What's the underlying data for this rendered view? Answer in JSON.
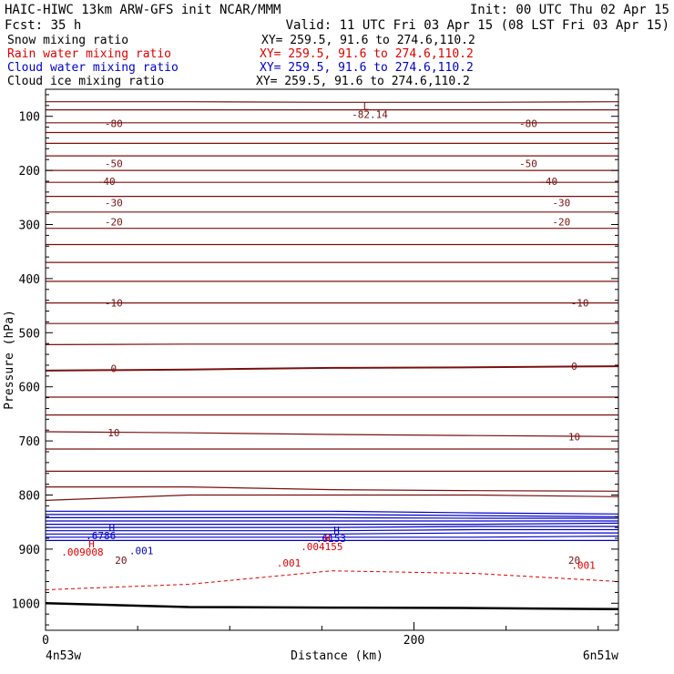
{
  "header": {
    "title": "HAIC-HIWC 13km ARW-GFS init   NCAR/MMM",
    "init": "Init: 00 UTC Thu 02 Apr 15",
    "fcst": "Fcst:   35 h",
    "valid": "Valid: 11 UTC Fri 03 Apr 15 (08 LST Fri 03 Apr 15)"
  },
  "legend": [
    {
      "label": "Snow mixing ratio",
      "xy": "XY= 259.5, 91.6 to 274.6,110.2",
      "color": "#000000"
    },
    {
      "label": "Rain water mixing ratio",
      "xy": "XY= 259.5, 91.6 to 274.6,110.2",
      "color": "#e00000"
    },
    {
      "label": "Cloud water mixing ratio",
      "xy": "XY= 259.5, 91.6 to 274.6,110.2",
      "color": "#0000c8"
    },
    {
      "label": "Cloud ice mixing ratio",
      "xy": "XY= 259.5, 91.6 to 274.6,110.2",
      "color": "#000000"
    }
  ],
  "chart_data": {
    "type": "contour cross-section",
    "xlabel": "Distance (km)",
    "ylabel": "Pressure (hPa)",
    "xlim": [
      0,
      311
    ],
    "ylim": [
      1050,
      50
    ],
    "x_ticks": [
      0,
      200
    ],
    "y_ticks": [
      100,
      200,
      300,
      400,
      500,
      600,
      700,
      800,
      900,
      1000
    ],
    "left_endpoint": "4n53w",
    "right_endpoint": "6n51w",
    "colors": {
      "temperature": "#7a1010",
      "cloud_water": "#0000c8",
      "rain_water": "#e00000",
      "ground": "#000000"
    },
    "temperature_lines": [
      {
        "p": [
          73,
          73,
          74,
          74,
          73
        ]
      },
      {
        "p": [
          88,
          88,
          88,
          88,
          88
        ]
      },
      {
        "p": [
          112,
          112,
          112,
          112,
          112
        ]
      },
      {
        "p": [
          130,
          130,
          130,
          130,
          130
        ]
      },
      {
        "p": [
          150,
          150,
          150,
          150,
          150
        ]
      },
      {
        "p": [
          173,
          173,
          173,
          173,
          173
        ]
      },
      {
        "p": [
          200,
          200,
          200,
          200,
          200
        ]
      },
      {
        "p": [
          222,
          222,
          222,
          222,
          222
        ]
      },
      {
        "p": [
          248,
          248,
          248,
          248,
          248
        ]
      },
      {
        "p": [
          277,
          277,
          277,
          277,
          277
        ]
      },
      {
        "p": [
          307,
          307,
          307,
          307,
          307
        ]
      },
      {
        "p": [
          337,
          337,
          337,
          337,
          337
        ]
      },
      {
        "p": [
          370,
          370,
          370,
          370,
          370
        ]
      },
      {
        "p": [
          405,
          405,
          405,
          405,
          405
        ]
      },
      {
        "p": [
          445,
          445,
          445,
          445,
          445
        ]
      },
      {
        "p": [
          483,
          483,
          483,
          483,
          483
        ]
      },
      {
        "p": [
          522,
          521,
          521,
          521,
          521
        ]
      },
      {
        "p": [
          570,
          568,
          565,
          564,
          562
        ]
      },
      {
        "p": [
          619,
          619,
          619,
          619,
          619
        ]
      },
      {
        "p": [
          652,
          652,
          652,
          652,
          652
        ]
      },
      {
        "p": [
          683,
          685,
          688,
          690,
          692
        ]
      },
      {
        "p": [
          715,
          715,
          715,
          715,
          715
        ]
      },
      {
        "p": [
          756,
          756,
          756,
          756,
          756
        ]
      },
      {
        "p": [
          785,
          785,
          790,
          792,
          793
        ]
      },
      {
        "p": [
          810,
          800,
          800,
          800,
          803
        ]
      }
    ],
    "temperature_labels": [
      {
        "text": "-80",
        "x": 37,
        "p": 113
      },
      {
        "text": "-80",
        "x": 262,
        "p": 113
      },
      {
        "text": "-50",
        "x": 37,
        "p": 187
      },
      {
        "text": "-50",
        "x": 262,
        "p": 187
      },
      {
        "text": "-40",
        "x": 33,
        "p": 220
      },
      {
        "text": "-40",
        "x": 273,
        "p": 220
      },
      {
        "text": "-30",
        "x": 37,
        "p": 260
      },
      {
        "text": "-30",
        "x": 280,
        "p": 260
      },
      {
        "text": "-20",
        "x": 37,
        "p": 295
      },
      {
        "text": "-20",
        "x": 280,
        "p": 295
      },
      {
        "text": "-10",
        "x": 37,
        "p": 445
      },
      {
        "text": "-10",
        "x": 290,
        "p": 445
      },
      {
        "text": "0",
        "x": 37,
        "p": 566
      },
      {
        "text": "0",
        "x": 287,
        "p": 562
      },
      {
        "text": "10",
        "x": 37,
        "p": 685
      },
      {
        "text": "10",
        "x": 287,
        "p": 692
      },
      {
        "text": "20",
        "x": 41,
        "p": 920
      },
      {
        "text": "20",
        "x": 287,
        "p": 920
      }
    ],
    "low_marker": {
      "text": "L",
      "value": "-82.14",
      "x": 174,
      "p": 81
    },
    "cloud_water_lines": [
      {
        "p": [
          830,
          830,
          830,
          833,
          835
        ]
      },
      {
        "p": [
          836,
          836,
          836,
          838,
          840
        ]
      },
      {
        "p": [
          842,
          842,
          842,
          843,
          843
        ]
      },
      {
        "p": [
          848,
          848,
          848,
          848,
          848
        ]
      },
      {
        "p": [
          854,
          854,
          854,
          854,
          852
        ]
      },
      {
        "p": [
          860,
          860,
          860,
          858,
          858
        ]
      },
      {
        "p": [
          866,
          866,
          866,
          864,
          864
        ]
      },
      {
        "p": [
          872,
          872,
          872,
          870,
          870
        ]
      },
      {
        "p": [
          878,
          878,
          878,
          878,
          876
        ]
      },
      {
        "p": [
          884,
          884,
          884,
          884,
          884
        ]
      }
    ],
    "cloud_water_labels": [
      {
        "text": "H",
        "x": 36,
        "p": 861
      },
      {
        "text": ".6786",
        "x": 30,
        "p": 875
      },
      {
        "text": "H",
        "x": 158,
        "p": 865
      },
      {
        "text": ".6153",
        "x": 155,
        "p": 880
      },
      {
        "text": ".001",
        "x": 52,
        "p": 903
      }
    ],
    "rain_water_lines": [
      {
        "p": [
          975,
          965,
          940,
          945,
          960
        ]
      }
    ],
    "rain_water_labels": [
      {
        "text": "H",
        "x": 25,
        "p": 890
      },
      {
        "text": ".009008",
        "x": 20,
        "p": 905
      },
      {
        "text": "H",
        "x": 153,
        "p": 880
      },
      {
        "text": ".004155",
        "x": 150,
        "p": 895
      },
      {
        "text": ".001",
        "x": 132,
        "p": 925
      },
      {
        "text": ".001",
        "x": 292,
        "p": 930
      }
    ],
    "ground": {
      "p": [
        1000,
        1007,
        1008,
        1009,
        1011
      ]
    }
  }
}
